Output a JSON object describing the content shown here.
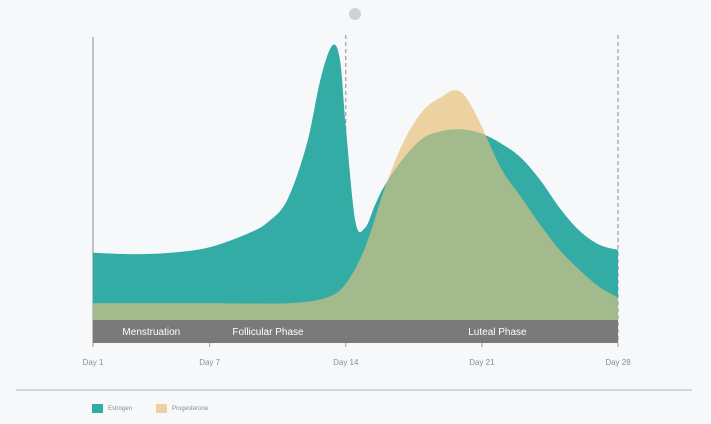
{
  "chart_data": {
    "type": "area",
    "x_tick_labels": [
      "Day 1",
      "Day 7",
      "Day 14",
      "Day 21",
      "Day 28"
    ],
    "x_tick_values": [
      1,
      7,
      14,
      21,
      28
    ],
    "xlim": [
      1,
      28
    ],
    "ylim": [
      0,
      100
    ],
    "grid": false,
    "phase_lines": [
      14,
      28
    ],
    "series": [
      {
        "name": "Progesterone",
        "color": "#ecd2a0",
        "x": [
          1,
          7,
          11,
          13,
          14,
          15,
          16,
          17,
          18,
          19,
          19.5,
          20,
          20.5,
          21,
          22,
          23,
          24,
          25,
          26,
          27,
          28
        ],
        "y": [
          6,
          6,
          6,
          8,
          13,
          26,
          47,
          64,
          75,
          80,
          82,
          81,
          76,
          69,
          54,
          44,
          34,
          25,
          18,
          12,
          8
        ]
      },
      {
        "name": "Estrogen",
        "color": "#33aca6",
        "x": [
          1,
          3,
          5,
          7,
          9,
          10,
          11,
          12,
          12.7,
          13.3,
          13.7,
          14,
          14.5,
          15,
          15.5,
          16,
          17,
          18,
          19,
          20,
          21,
          22,
          23,
          24,
          25,
          26,
          27,
          28
        ],
        "y": [
          24,
          23.5,
          24,
          26,
          31,
          35,
          43,
          63,
          86,
          98,
          93,
          69,
          35,
          33,
          41,
          48,
          58,
          65,
          67.5,
          68,
          66.5,
          63,
          58,
          50,
          40,
          32,
          27,
          25
        ]
      }
    ],
    "overlap_color": "#a2ba8c",
    "phases": [
      {
        "label": "Menstruation",
        "x": 4
      },
      {
        "label": "Follicular Phase",
        "x": 10
      },
      {
        "label": "Luteal Phase",
        "x": 21.8
      }
    ]
  },
  "legend": {
    "items": [
      {
        "label": "Estrogen",
        "color": "#33aca6"
      },
      {
        "label": "Progesterone",
        "color": "#ecd2a0"
      }
    ]
  }
}
